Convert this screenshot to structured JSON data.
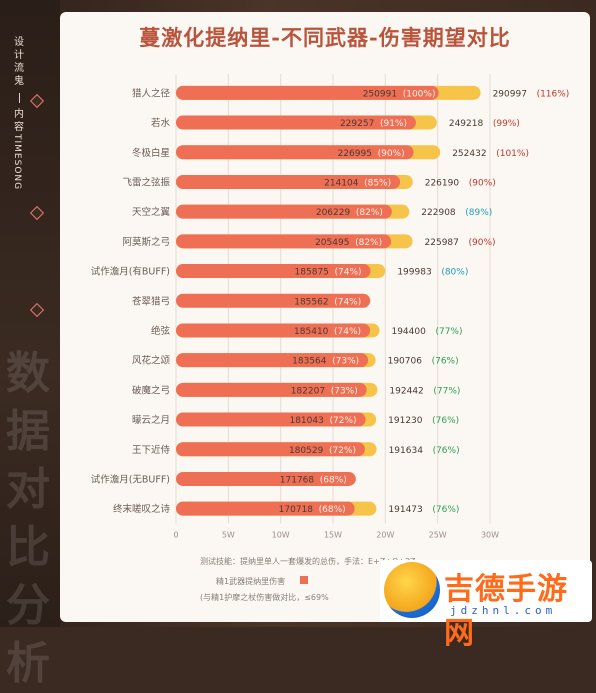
{
  "sidebar": {
    "line1": "设计",
    "line2": "流鬼",
    "line3": "内容",
    "vertical": "TIMESONG",
    "watermark": "数据对比分析"
  },
  "colors": {
    "bar_main": "#ef6f55",
    "bar_ext": "#f7c44a",
    "pct_red": "#c0392b",
    "pct_green": "#2e9d55",
    "pct_cyan": "#1f9fb3",
    "title": "#b9543d"
  },
  "chart_data": {
    "type": "bar",
    "title": "蔓激化提纳里-不同武器-伤害期望对比",
    "orientation": "horizontal",
    "xlim": [
      0,
      300000
    ],
    "x_ticks": [
      "0",
      "5W",
      "10W",
      "15W",
      "20W",
      "25W",
      "30W"
    ],
    "grid": true,
    "categories": [
      "猎人之径",
      "若水",
      "冬极白星",
      "飞雷之弦振",
      "天空之翼",
      "阿莫斯之弓",
      "试作澹月(有BUFF)",
      "苍翠猎弓",
      "绝弦",
      "风花之颂",
      "破魔之弓",
      "曚云之月",
      "王下近侍",
      "试作澹月(无BUFF)",
      "终末嗟叹之诗"
    ],
    "series": [
      {
        "name": "精1武器提纳里伤害",
        "values": [
          250991,
          229257,
          226995,
          214104,
          206229,
          205495,
          185875,
          185562,
          185410,
          183564,
          182207,
          181043,
          180529,
          171768,
          170718
        ],
        "labels": [
          "250991",
          "229257",
          "226995",
          "214104",
          "206229",
          "205495",
          "185875",
          "185562",
          "185410",
          "183564",
          "182207",
          "181043",
          "180529",
          "171768",
          "170718"
        ],
        "pcts": [
          "(100%)",
          "(91%)",
          "(90%)",
          "(85%)",
          "(82%)",
          "(82%)",
          "(74%)",
          "(74%)",
          "(74%)",
          "(73%)",
          "(73%)",
          "(72%)",
          "(72%)",
          "(68%)",
          "(68%)"
        ]
      },
      {
        "name": "精5武器提纳里伤害",
        "values": [
          290997,
          249218,
          252432,
          226190,
          222908,
          225987,
          199983,
          null,
          194400,
          190706,
          192442,
          191230,
          191634,
          null,
          191473
        ],
        "labels": [
          "290997",
          "249218",
          "252432",
          "226190",
          "222908",
          "225987",
          "199983",
          "",
          "194400",
          "190706",
          "192442",
          "191230",
          "191634",
          "",
          "191473"
        ],
        "pcts": [
          "(116%)",
          "(99%)",
          "(101%)",
          "(90%)",
          "(89%)",
          "(90%)",
          "(80%)",
          "",
          "(77%)",
          "(76%)",
          "(77%)",
          "(76%)",
          "(76%)",
          "",
          "(76%)"
        ],
        "pct_colors": [
          "red",
          "red",
          "red",
          "red",
          "cyan",
          "red",
          "cyan",
          "",
          "green",
          "green",
          "green",
          "green",
          "green",
          "",
          "green"
        ]
      }
    ]
  },
  "notes": {
    "test_method": "测试技能：提纳里单人一套爆发的总伤，手法：E+Z+Q+2Z",
    "legend1": "精1武器提纳里伤害",
    "legend2": "精5武器提纳里伤害",
    "footnote": "(与精1护摩之杖伤害做对比，≤69%"
  },
  "logo": {
    "text": "吉德手游网",
    "url": "jdzhnl.com"
  }
}
